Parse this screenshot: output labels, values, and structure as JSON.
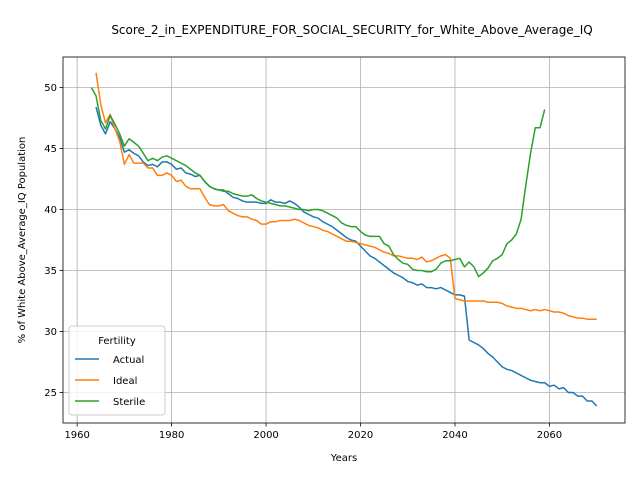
{
  "chart_data": {
    "type": "line",
    "title": "Score_2_in_EXPENDITURE_FOR_SOCIAL_SECURITY_for_White_Above_Average_IQ",
    "xlabel": "Years",
    "ylabel": "% of White Above_Average_IQ Population",
    "xlim": [
      1957,
      2076
    ],
    "ylim": [
      22.5,
      52.5
    ],
    "xticks": [
      1960,
      1980,
      2000,
      2020,
      2040,
      2060
    ],
    "yticks": [
      25,
      30,
      35,
      40,
      45,
      50
    ],
    "grid": true,
    "legend": {
      "title": "Fertility",
      "position": "lower-left"
    },
    "series": [
      {
        "name": "Actual",
        "color": "#1f77b4",
        "x": [
          1964,
          1965,
          1966,
          1967,
          1968,
          1969,
          1970,
          1971,
          1972,
          1973,
          1974,
          1975,
          1976,
          1977,
          1978,
          1979,
          1980,
          1981,
          1982,
          1983,
          1984,
          1985,
          1986,
          1987,
          1988,
          1989,
          1990,
          1991,
          1992,
          1993,
          1994,
          1995,
          1996,
          1997,
          1998,
          1999,
          2000,
          2001,
          2002,
          2003,
          2004,
          2005,
          2006,
          2007,
          2008,
          2009,
          2010,
          2011,
          2012,
          2013,
          2014,
          2015,
          2016,
          2017,
          2018,
          2019,
          2020,
          2021,
          2022,
          2023,
          2024,
          2025,
          2026,
          2027,
          2028,
          2029,
          2030,
          2031,
          2032,
          2033,
          2034,
          2035,
          2036,
          2037,
          2038,
          2039,
          2040,
          2041,
          2042,
          2043,
          2044,
          2045,
          2046,
          2047,
          2048,
          2049,
          2050,
          2051,
          2052,
          2053,
          2054,
          2055,
          2056,
          2057,
          2058,
          2059,
          2060,
          2061,
          2062,
          2063,
          2064,
          2065,
          2066,
          2067,
          2068,
          2069,
          2070
        ],
        "y": [
          48.4,
          46.9,
          46.2,
          47.2,
          46.6,
          45.9,
          44.7,
          44.9,
          44.6,
          44.4,
          43.9,
          43.6,
          43.7,
          43.5,
          43.9,
          43.9,
          43.7,
          43.3,
          43.4,
          43.0,
          42.9,
          42.7,
          42.8,
          42.3,
          41.9,
          41.7,
          41.6,
          41.6,
          41.3,
          41.0,
          40.9,
          40.7,
          40.6,
          40.6,
          40.6,
          40.5,
          40.5,
          40.8,
          40.6,
          40.6,
          40.5,
          40.7,
          40.5,
          40.2,
          39.8,
          39.6,
          39.4,
          39.3,
          39.0,
          38.8,
          38.6,
          38.3,
          38.0,
          37.7,
          37.5,
          37.4,
          37.0,
          36.6,
          36.2,
          36.0,
          35.7,
          35.4,
          35.1,
          34.8,
          34.6,
          34.4,
          34.1,
          34.0,
          33.8,
          33.9,
          33.6,
          33.6,
          33.5,
          33.6,
          33.4,
          33.2,
          33.0,
          33.0,
          32.9,
          29.3,
          29.1,
          28.9,
          28.6,
          28.2,
          27.9,
          27.5,
          27.1,
          26.9,
          26.8,
          26.6,
          26.4,
          26.2,
          26.0,
          25.9,
          25.8,
          25.8,
          25.5,
          25.6,
          25.3,
          25.4,
          25.0,
          25.0,
          24.7,
          24.7,
          24.3,
          24.3,
          23.9
        ]
      },
      {
        "name": "Ideal",
        "color": "#ff7f0e",
        "x": [
          1964,
          1965,
          1966,
          1967,
          1968,
          1969,
          1970,
          1971,
          1972,
          1973,
          1974,
          1975,
          1976,
          1977,
          1978,
          1979,
          1980,
          1981,
          1982,
          1983,
          1984,
          1985,
          1986,
          1987,
          1988,
          1989,
          1990,
          1991,
          1992,
          1993,
          1994,
          1995,
          1996,
          1997,
          1998,
          1999,
          2000,
          2001,
          2002,
          2003,
          2004,
          2005,
          2006,
          2007,
          2008,
          2009,
          2010,
          2011,
          2012,
          2013,
          2014,
          2015,
          2016,
          2017,
          2018,
          2019,
          2020,
          2021,
          2022,
          2023,
          2024,
          2025,
          2026,
          2027,
          2028,
          2029,
          2030,
          2031,
          2032,
          2033,
          2034,
          2035,
          2036,
          2037,
          2038,
          2039,
          2040,
          2041,
          2042,
          2043,
          2044,
          2045,
          2046,
          2047,
          2048,
          2049,
          2050,
          2051,
          2052,
          2053,
          2054,
          2055,
          2056,
          2057,
          2058,
          2059,
          2060,
          2061,
          2062,
          2063,
          2064,
          2065,
          2066,
          2067,
          2068,
          2069,
          2070
        ],
        "y": [
          51.2,
          48.6,
          47.1,
          47.8,
          46.6,
          45.6,
          43.7,
          44.5,
          43.8,
          43.8,
          43.8,
          43.4,
          43.4,
          42.8,
          42.8,
          43.0,
          42.8,
          42.3,
          42.4,
          41.9,
          41.7,
          41.7,
          41.7,
          41.0,
          40.4,
          40.3,
          40.3,
          40.4,
          39.9,
          39.7,
          39.5,
          39.4,
          39.4,
          39.2,
          39.1,
          38.8,
          38.8,
          39.0,
          39.0,
          39.1,
          39.1,
          39.1,
          39.2,
          39.1,
          38.9,
          38.7,
          38.6,
          38.5,
          38.3,
          38.2,
          38.0,
          37.8,
          37.6,
          37.4,
          37.4,
          37.3,
          37.2,
          37.1,
          37.0,
          36.9,
          36.7,
          36.5,
          36.4,
          36.2,
          36.2,
          36.1,
          36.0,
          36.0,
          35.9,
          36.1,
          35.7,
          35.8,
          36.0,
          36.2,
          36.3,
          36.0,
          32.7,
          32.6,
          32.5,
          32.5,
          32.5,
          32.5,
          32.5,
          32.4,
          32.4,
          32.4,
          32.3,
          32.1,
          32.0,
          31.9,
          31.9,
          31.8,
          31.7,
          31.8,
          31.7,
          31.8,
          31.7,
          31.6,
          31.6,
          31.5,
          31.3,
          31.2,
          31.1,
          31.1,
          31.0,
          31.0,
          31.0
        ]
      },
      {
        "name": "Sterile",
        "color": "#2ca02c",
        "x": [
          1963,
          1964,
          1965,
          1966,
          1967,
          1968,
          1969,
          1970,
          1971,
          1972,
          1973,
          1974,
          1975,
          1976,
          1977,
          1978,
          1979,
          1980,
          1981,
          1982,
          1983,
          1984,
          1985,
          1986,
          1987,
          1988,
          1989,
          1990,
          1991,
          1992,
          1993,
          1994,
          1995,
          1996,
          1997,
          1998,
          1999,
          2000,
          2001,
          2002,
          2003,
          2004,
          2005,
          2006,
          2007,
          2008,
          2009,
          2010,
          2011,
          2012,
          2013,
          2014,
          2015,
          2016,
          2017,
          2018,
          2019,
          2020,
          2021,
          2022,
          2023,
          2024,
          2025,
          2026,
          2027,
          2028,
          2029,
          2030,
          2031,
          2032,
          2033,
          2034,
          2035,
          2036,
          2037,
          2038,
          2039,
          2040,
          2041,
          2042,
          2043,
          2044,
          2045,
          2046,
          2047,
          2048,
          2049,
          2050,
          2051,
          2052,
          2053,
          2054,
          2055,
          2056,
          2057,
          2058,
          2059
        ],
        "y": [
          50.0,
          49.3,
          47.3,
          46.6,
          47.7,
          47.0,
          46.2,
          45.2,
          45.8,
          45.5,
          45.2,
          44.6,
          44.0,
          44.2,
          44.0,
          44.3,
          44.4,
          44.2,
          44.0,
          43.8,
          43.6,
          43.3,
          43.0,
          42.8,
          42.3,
          41.9,
          41.7,
          41.6,
          41.5,
          41.5,
          41.3,
          41.2,
          41.1,
          41.1,
          41.2,
          40.9,
          40.7,
          40.6,
          40.5,
          40.4,
          40.3,
          40.3,
          40.2,
          40.1,
          40.0,
          40.0,
          39.9,
          40.0,
          40.0,
          39.9,
          39.7,
          39.5,
          39.3,
          38.9,
          38.7,
          38.6,
          38.6,
          38.2,
          37.9,
          37.8,
          37.8,
          37.8,
          37.2,
          37.0,
          36.3,
          35.9,
          35.6,
          35.5,
          35.1,
          35.0,
          35.0,
          34.9,
          34.9,
          35.1,
          35.6,
          35.8,
          35.8,
          35.9,
          36.0,
          35.3,
          35.7,
          35.3,
          34.5,
          34.8,
          35.2,
          35.8,
          36.0,
          36.3,
          37.2,
          37.5,
          38.0,
          39.2,
          42.0,
          44.6,
          46.7,
          46.7,
          48.2
        ]
      }
    ]
  }
}
